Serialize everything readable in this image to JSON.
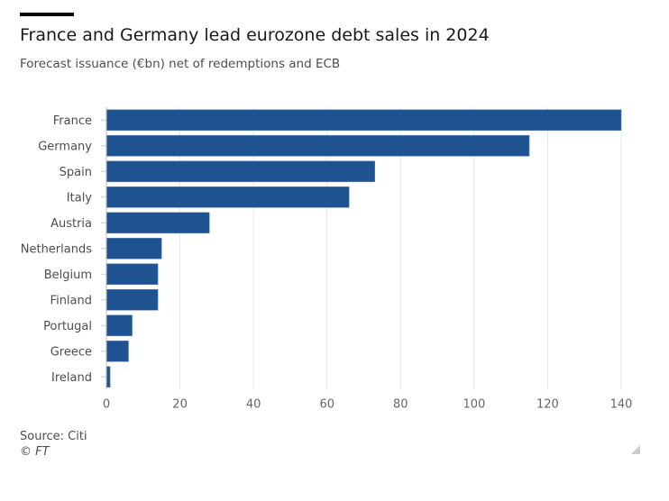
{
  "chart_data": {
    "type": "bar",
    "orientation": "horizontal",
    "title": "France and Germany lead eurozone debt sales in 2024",
    "subtitle": "Forecast issuance (€bn) net of redemptions and ECB",
    "categories": [
      "France",
      "Germany",
      "Spain",
      "Italy",
      "Austria",
      "Netherlands",
      "Belgium",
      "Finland",
      "Portugal",
      "Greece",
      "Ireland"
    ],
    "values": [
      140,
      115,
      73,
      66,
      28,
      15,
      14,
      14,
      7,
      6,
      1
    ],
    "xlim": [
      0,
      140
    ],
    "xticks": [
      0,
      20,
      40,
      60,
      80,
      100,
      120,
      140
    ],
    "grid": true,
    "bar_color": "#1f5290",
    "source": "Source: Citi",
    "copyright": "© FT"
  }
}
